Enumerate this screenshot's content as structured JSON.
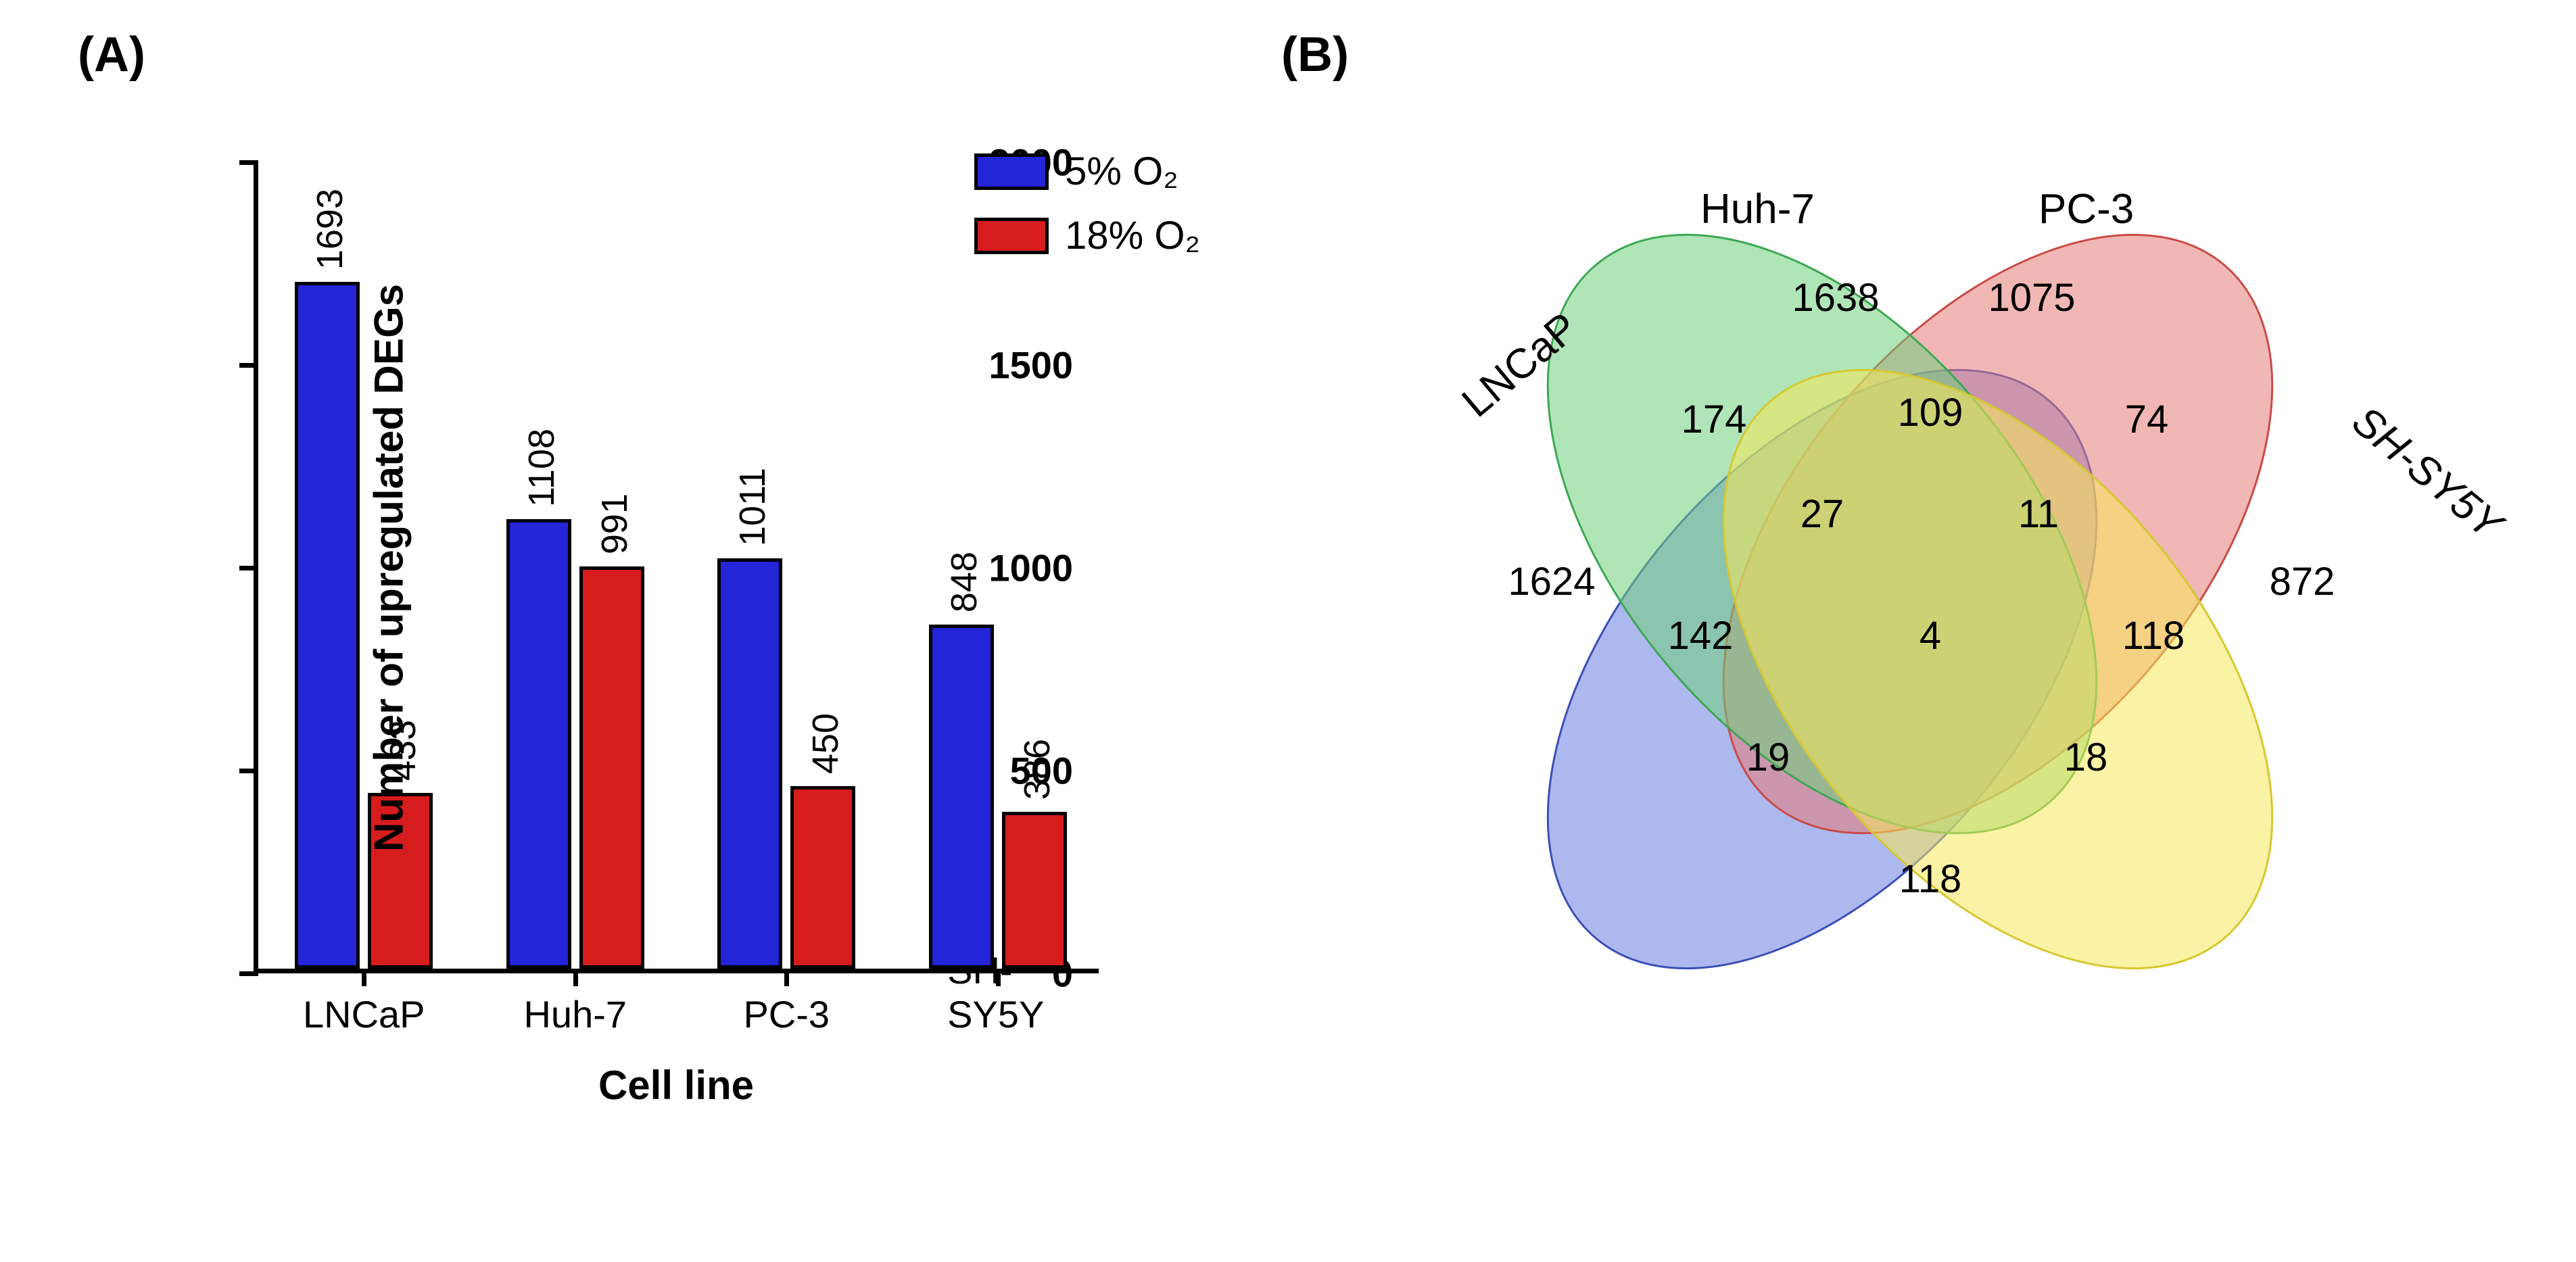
{
  "panelA": {
    "label": "(A)",
    "chart": {
      "type": "bar",
      "ylabel": "Number of upregulated DEGs",
      "xlabel": "Cell line",
      "ylim": [
        0,
        2000
      ],
      "ytick_step": 500,
      "categories": [
        "LNCaP",
        "Huh-7",
        "PC-3",
        "SH-SY5Y"
      ],
      "series": [
        {
          "name": "5% O₂",
          "color": "#2424d8",
          "values": [
            1693,
            1108,
            1011,
            848
          ]
        },
        {
          "name": "18% O₂",
          "color": "#d61c1c",
          "values": [
            433,
            991,
            450,
            386
          ]
        }
      ],
      "bar_border": "#000000",
      "bar_border_width": 5,
      "axis_color": "#000000",
      "axis_width": 7,
      "label_fontsize": 56,
      "title_fontsize": 60,
      "bar_label_fontsize": 54,
      "background_color": "#ffffff"
    }
  },
  "panelB": {
    "label": "(B)",
    "venn": {
      "type": "venn4",
      "sets": [
        {
          "name": "LNCaP",
          "color": "#6a7fe0",
          "stroke": "#3b4fb8",
          "label_pos": "left-top"
        },
        {
          "name": "Huh-7",
          "color": "#e57c78",
          "stroke": "#c94b47",
          "label_pos": "left-top-inner"
        },
        {
          "name": "PC-3",
          "color": "#6fcf7c",
          "stroke": "#3da853",
          "label_pos": "right-top-inner"
        },
        {
          "name": "SH-SY5Y",
          "color": "#f5e75a",
          "stroke": "#d6c830",
          "label_pos": "right-top"
        }
      ],
      "opacity": 0.55,
      "stroke_width": 3,
      "regions": {
        "LNCaP_only": 1624,
        "Huh7_only": 1638,
        "PC3_only": 1075,
        "SHSY5Y_only": 872,
        "LNCaP_Huh7": 174,
        "Huh7_PC3": 109,
        "PC3_SHSY5Y": 74,
        "LNCaP_PC3": 142,
        "Huh7_SHSY5Y": 118,
        "LNCaP_SHSY5Y": 118,
        "LNCaP_Huh7_PC3": 27,
        "Huh7_PC3_SHSY5Y": 11,
        "LNCaP_PC3_SHSY5Y": 19,
        "LNCaP_Huh7_SHSY5Y": 18,
        "all4": 4
      },
      "label_fontsize": 58,
      "set_label_fontsize": 62,
      "background_color": "#ffffff"
    }
  }
}
